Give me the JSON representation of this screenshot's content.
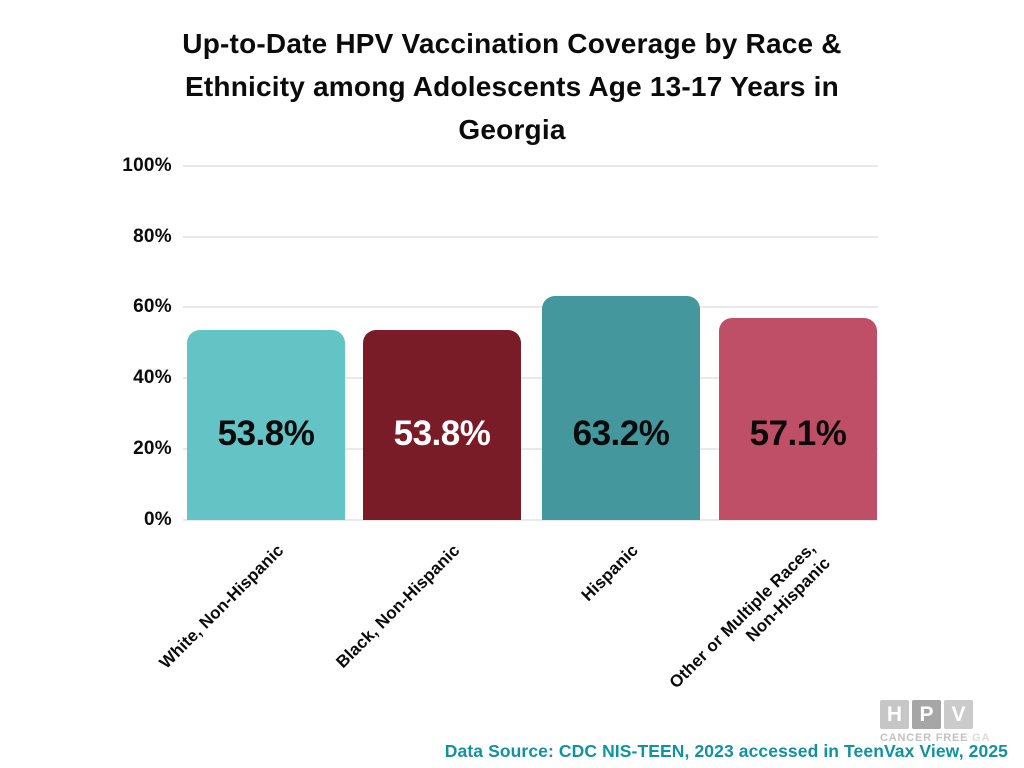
{
  "title": {
    "lines": [
      "Up-to-Date HPV Vaccination Coverage by Race &",
      "Ethnicity among Adolescents Age 13-17 Years in",
      "Georgia"
    ]
  },
  "chart_data": {
    "type": "bar",
    "title": "Up-to-Date HPV Vaccination Coverage by Race & Ethnicity among Adolescents Age 13-17 Years in Georgia",
    "categories": [
      "White, Non-Hispanic",
      "Black, Non-Hispanic",
      "Hispanic",
      "Other or Multiple Races,\nNon-Hispanic"
    ],
    "values": [
      53.8,
      53.8,
      63.2,
      57.1
    ],
    "value_labels": [
      "53.8%",
      "53.8%",
      "63.2%",
      "57.1%"
    ],
    "bar_colors": [
      "#64c3c5",
      "#7a1b28",
      "#45979e",
      "#be4f67"
    ],
    "value_label_colors": [
      "#0b0b0b",
      "#ffffff",
      "#0b0b0b",
      "#0b0b0b"
    ],
    "ytick_labels": [
      "100%",
      "80%",
      "60%",
      "40%",
      "20%",
      "0%"
    ],
    "ylim": [
      0,
      100
    ],
    "xlabel": "",
    "ylabel": "",
    "grid": true,
    "gridline_color": "#e9e9e9",
    "legend": "none",
    "background": "#ffffff"
  },
  "footer": {
    "data_source": "Data Source: CDC NIS-TEEN, 2023 accessed in TeenVax View, 2025",
    "color": "#12919e"
  },
  "logo": {
    "letters": [
      "H",
      "P",
      "V"
    ],
    "box_colors": [
      "#c6c6c6",
      "#a6a6a6",
      "#cbcbcb"
    ],
    "caption": "CANCER FREE",
    "caption_suffix": "GA"
  }
}
